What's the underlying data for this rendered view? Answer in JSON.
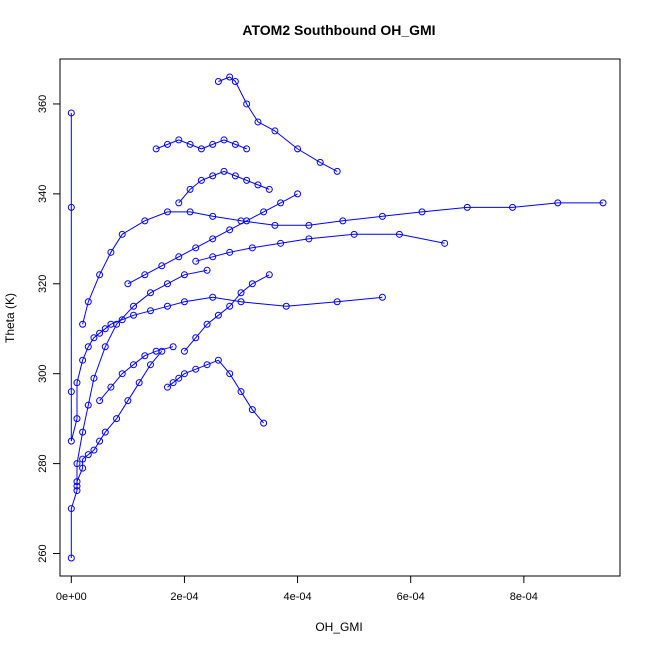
{
  "chart_data": {
    "type": "scatter",
    "title": "ATOM2 Southbound OH_GMI",
    "xlabel": "OH_GMI",
    "ylabel": "Theta (K)",
    "xlim": [
      -2e-05,
      0.00097
    ],
    "ylim": [
      255,
      370
    ],
    "x_ticks": [
      0,
      0.0002,
      0.0004,
      0.0006,
      0.0008
    ],
    "x_tick_labels": [
      "0e+00",
      "2e-04",
      "4e-04",
      "6e-04",
      "8e-04"
    ],
    "y_ticks": [
      260,
      280,
      300,
      320,
      340,
      360
    ],
    "y_tick_labels": [
      "260",
      "280",
      "300",
      "320",
      "340",
      "360"
    ],
    "marker": "open-circle",
    "connected": true,
    "grid": false,
    "legend": "none",
    "series_color": "#0000ff",
    "series": [
      {
        "x": [
          0,
          0.0,
          1e-05,
          1e-05,
          2e-05,
          2e-05,
          3e-05,
          4e-05,
          5e-05,
          6e-05,
          8e-05,
          0.0001,
          0.00012,
          0.00014,
          0.00016
        ],
        "y": [
          259,
          270,
          274,
          276,
          279,
          281,
          282,
          283,
          285,
          287,
          290,
          294,
          298,
          302,
          305
        ]
      },
      {
        "x": [
          0,
          0.0,
          0.0,
          0.0,
          1e-05,
          1e-05,
          2e-05,
          3e-05,
          4e-05,
          5e-05,
          6e-05,
          7e-05,
          9e-05,
          0.00011,
          0.00014,
          0.00017,
          0.0002,
          0.00025,
          0.0003,
          0.00038,
          0.00047,
          0.00055
        ],
        "y": [
          358,
          337,
          296,
          285,
          290,
          298,
          303,
          306,
          308,
          309,
          310,
          311,
          312,
          313,
          314,
          315,
          316,
          317,
          316,
          315,
          316,
          317
        ]
      },
      {
        "x": [
          1e-05,
          1e-05,
          2e-05,
          3e-05,
          4e-05,
          6e-05,
          8e-05,
          0.00011,
          0.00014,
          0.00017,
          0.0002,
          0.00024
        ],
        "y": [
          275,
          280,
          287,
          293,
          299,
          306,
          311,
          315,
          318,
          320,
          322,
          323
        ]
      },
      {
        "x": [
          2e-05,
          3e-05,
          5e-05,
          7e-05,
          9e-05,
          0.00013,
          0.00017,
          0.00021,
          0.00025,
          0.0003,
          0.00036,
          0.00042,
          0.00048,
          0.00055,
          0.00062,
          0.0007,
          0.00078,
          0.00086,
          0.00094
        ],
        "y": [
          311,
          316,
          322,
          327,
          331,
          334,
          336,
          336,
          335,
          334,
          333,
          333,
          334,
          335,
          336,
          337,
          337,
          338,
          338
        ]
      },
      {
        "x": [
          0.00015,
          0.00017,
          0.00019,
          0.00021,
          0.00023,
          0.00025,
          0.00027,
          0.00029,
          0.00031
        ],
        "y": [
          350,
          351,
          352,
          351,
          350,
          351,
          352,
          351,
          350
        ]
      },
      {
        "x": [
          0.00026,
          0.00028,
          0.00029,
          0.00031,
          0.00033,
          0.00036,
          0.0004,
          0.00044,
          0.00047
        ],
        "y": [
          365,
          366,
          365,
          360,
          356,
          354,
          350,
          347,
          345
        ]
      },
      {
        "x": [
          0.00017,
          0.00018,
          0.00019,
          0.0002,
          0.00022,
          0.00024,
          0.00026,
          0.00028,
          0.0003,
          0.00032,
          0.00034
        ],
        "y": [
          297,
          298,
          299,
          300,
          301,
          302,
          303,
          300,
          296,
          292,
          289
        ]
      },
      {
        "x": [
          0.0001,
          0.00013,
          0.00016,
          0.00019,
          0.00022,
          0.00025,
          0.00028,
          0.00031,
          0.00034,
          0.00037,
          0.0004
        ],
        "y": [
          320,
          322,
          324,
          326,
          328,
          330,
          332,
          334,
          336,
          338,
          340
        ]
      },
      {
        "x": [
          0.00019,
          0.00021,
          0.00023,
          0.00025,
          0.00027,
          0.00029,
          0.00031,
          0.00033,
          0.00035
        ],
        "y": [
          338,
          341,
          343,
          344,
          345,
          344,
          343,
          342,
          341
        ]
      },
      {
        "x": [
          0.0002,
          0.00022,
          0.00024,
          0.00026,
          0.00028,
          0.0003,
          0.00032,
          0.00035
        ],
        "y": [
          305,
          308,
          311,
          313,
          315,
          318,
          320,
          322
        ]
      },
      {
        "x": [
          0.00022,
          0.00025,
          0.00028,
          0.00032,
          0.00037,
          0.00042,
          0.0005,
          0.00058,
          0.00066
        ],
        "y": [
          325,
          326,
          327,
          328,
          329,
          330,
          331,
          331,
          329
        ]
      },
      {
        "x": [
          5e-05,
          7e-05,
          9e-05,
          0.00011,
          0.00013,
          0.00015,
          0.00018
        ],
        "y": [
          294,
          297,
          300,
          302,
          304,
          305,
          306
        ]
      }
    ]
  }
}
